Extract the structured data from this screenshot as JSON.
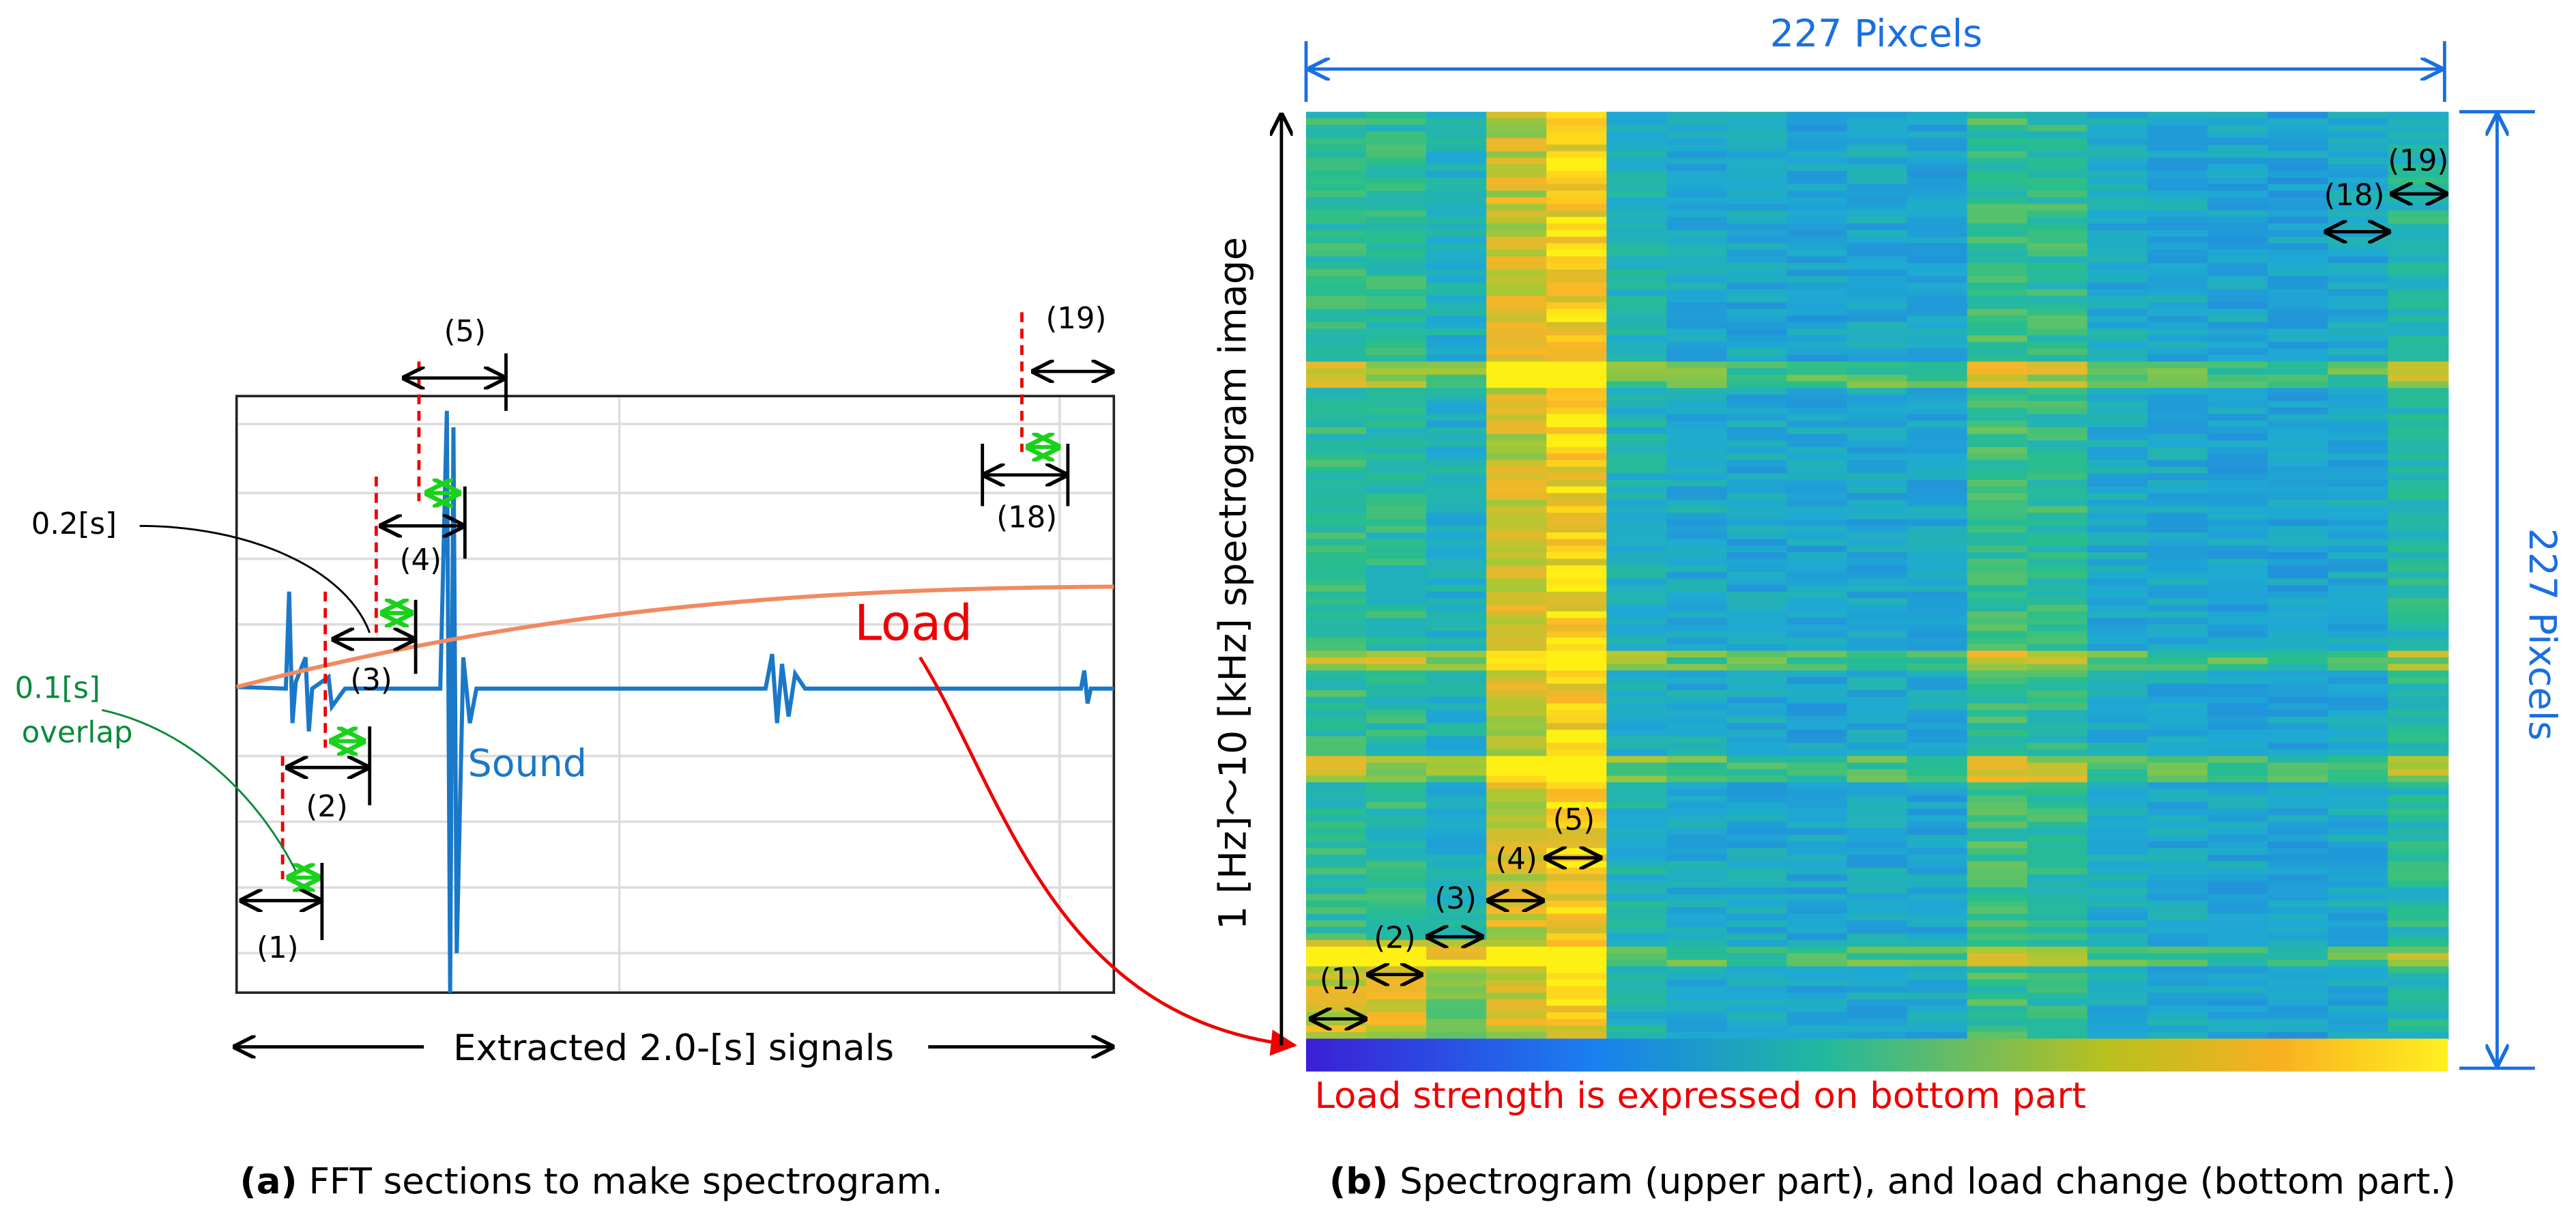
{
  "panel_a": {
    "sections": [
      "(1)",
      "(2)",
      "(3)",
      "(4)",
      "(5)",
      "(18)",
      "(19)"
    ],
    "interval_label": "0.2[s]",
    "overlap_label": [
      "0.1[s]",
      "overlap"
    ],
    "load_label": "Load",
    "sound_label": "Sound",
    "span_label": "Extracted 2.0-[s] signals"
  },
  "panel_b": {
    "width_label": "227 Pixcels",
    "height_label": "227 Pixcels",
    "y_axis_label": "1 [Hz]～10 [kHz] spectrogram image",
    "sections": [
      "(1)",
      "(2)",
      "(3)",
      "(4)",
      "(5)",
      "(18)",
      "(19)"
    ],
    "bottom_note": "Load strength is expressed on bottom part"
  },
  "captions": [
    {
      "tag": "(a)",
      "text": " FFT sections to make spectrogram."
    },
    {
      "tag": "(b)",
      "text": " Spectrogram (upper part), and load change (bottom part.)"
    }
  ]
}
